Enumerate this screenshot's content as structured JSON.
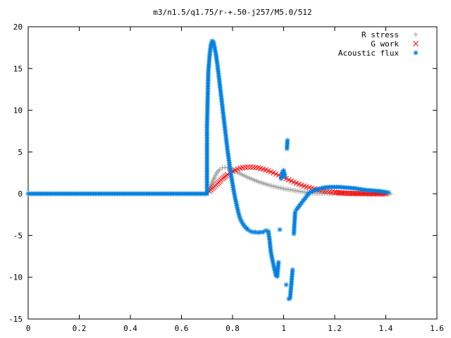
{
  "chart_data": {
    "type": "scatter",
    "title": "m3/n1.5/q1.75/r-+.50-j257/M5.0/512",
    "xlabel": "",
    "ylabel": "",
    "xlim": [
      0,
      1.6
    ],
    "ylim": [
      -15,
      20
    ],
    "xticks": [
      0,
      0.2,
      0.4,
      0.6,
      0.8,
      1,
      1.2,
      1.4,
      1.6
    ],
    "yticks": [
      -15,
      -10,
      -5,
      0,
      5,
      10,
      15,
      20
    ],
    "legend_position": "top-right",
    "grid": false,
    "series": [
      {
        "name": "R stress",
        "marker": "plus",
        "color": "#a0a0a0",
        "x": [
          0,
          0.1,
          0.2,
          0.3,
          0.4,
          0.5,
          0.6,
          0.65,
          0.7,
          0.705,
          0.71,
          0.72,
          0.73,
          0.74,
          0.75,
          0.76,
          0.77,
          0.78,
          0.79,
          0.8,
          0.82,
          0.84,
          0.86,
          0.88,
          0.9,
          0.92,
          0.94,
          0.96,
          0.98,
          1.0,
          1.02,
          1.04,
          1.06,
          1.08,
          1.1,
          1.12,
          1.14,
          1.16,
          1.18,
          1.2,
          1.22,
          1.24,
          1.26,
          1.28,
          1.3,
          1.32,
          1.34,
          1.36,
          1.38,
          1.4,
          1.42
        ],
        "y": [
          0,
          0,
          0,
          0,
          0,
          0,
          0,
          0,
          0,
          0.2,
          0.6,
          1.3,
          2.0,
          2.6,
          2.9,
          3.1,
          3.15,
          3.1,
          3.0,
          2.85,
          2.55,
          2.25,
          1.95,
          1.7,
          1.45,
          1.25,
          1.05,
          0.9,
          0.75,
          0.6,
          0.5,
          0.4,
          0.3,
          0.2,
          0.12,
          0.08,
          0.05,
          0.03,
          0.02,
          0.01,
          0.0,
          0.0,
          0.0,
          0.0,
          0.0,
          0.0,
          0.0,
          0.0,
          0.0,
          0.0,
          0.0
        ]
      },
      {
        "name": "G work",
        "marker": "cross",
        "color": "#ff0000",
        "x": [
          0.71,
          0.72,
          0.73,
          0.74,
          0.75,
          0.76,
          0.77,
          0.78,
          0.79,
          0.8,
          0.81,
          0.82,
          0.83,
          0.84,
          0.85,
          0.86,
          0.87,
          0.88,
          0.89,
          0.9,
          0.91,
          0.92,
          0.93,
          0.94,
          0.95,
          0.96,
          0.97,
          0.98,
          0.99,
          1.0,
          1.01,
          1.02,
          1.03,
          1.04,
          1.05,
          1.06,
          1.07,
          1.08,
          1.09,
          1.1,
          1.11,
          1.12,
          1.13,
          1.14,
          1.15,
          1.16,
          1.17,
          1.18,
          1.19,
          1.2,
          1.22,
          1.24,
          1.26,
          1.28,
          1.3,
          1.32,
          1.34,
          1.36,
          1.38,
          1.4
        ],
        "y": [
          0.3,
          0.6,
          0.9,
          1.2,
          1.5,
          1.8,
          2.05,
          2.3,
          2.5,
          2.7,
          2.85,
          2.97,
          3.05,
          3.12,
          3.17,
          3.2,
          3.2,
          3.18,
          3.15,
          3.1,
          3.03,
          2.95,
          2.86,
          2.75,
          2.63,
          2.5,
          2.37,
          2.23,
          2.09,
          1.95,
          1.81,
          1.67,
          1.53,
          1.4,
          1.27,
          1.15,
          1.04,
          0.93,
          0.83,
          0.74,
          0.65,
          0.57,
          0.5,
          0.44,
          0.38,
          0.33,
          0.28,
          0.24,
          0.2,
          0.17,
          0.12,
          0.08,
          0.05,
          0.03,
          0.02,
          0.01,
          0.0,
          0.0,
          0.0,
          0.0
        ]
      },
      {
        "name": "Acoustic flux",
        "marker": "star",
        "color": "#0080e0",
        "x": [
          0,
          0.1,
          0.2,
          0.3,
          0.4,
          0.5,
          0.6,
          0.7,
          0.7,
          0.705,
          0.71,
          0.715,
          0.72,
          0.725,
          0.73,
          0.735,
          0.74,
          0.745,
          0.75,
          0.755,
          0.76,
          0.765,
          0.77,
          0.775,
          0.78,
          0.785,
          0.79,
          0.795,
          0.8,
          0.805,
          0.81,
          0.815,
          0.82,
          0.825,
          0.83,
          0.84,
          0.85,
          0.86,
          0.87,
          0.88,
          0.89,
          0.9,
          0.91,
          0.92,
          0.93,
          0.94,
          0.945,
          0.95,
          0.96,
          0.97,
          0.975,
          0.98,
          0.985,
          0.99,
          0.995,
          1.0,
          1.005,
          1.01,
          1.013,
          1.015,
          1.02,
          1.025,
          1.03,
          1.035,
          1.04,
          1.045,
          1.05,
          1.06,
          1.07,
          1.08,
          1.09,
          1.1,
          1.12,
          1.14,
          1.16,
          1.18,
          1.2,
          1.22,
          1.24,
          1.26,
          1.28,
          1.3,
          1.32,
          1.34,
          1.36,
          1.38,
          1.4,
          1.41
        ],
        "y": [
          0,
          0,
          0,
          0,
          0,
          0,
          0,
          0,
          8.1,
          14.5,
          16.5,
          17.8,
          18.3,
          18.2,
          17.5,
          16.7,
          15.6,
          14.4,
          13.1,
          11.8,
          10.5,
          9.2,
          7.9,
          6.6,
          5.3,
          4.2,
          3.1,
          2.1,
          1.2,
          0.3,
          -0.5,
          -1.2,
          -1.9,
          -2.5,
          -3.0,
          -3.6,
          -4.0,
          -4.3,
          -4.5,
          -4.6,
          -4.6,
          -4.65,
          -4.6,
          -4.6,
          -4.4,
          -4.5,
          -5.5,
          -7.0,
          -8.5,
          -9.8,
          -9.9,
          -8.2,
          -4.3,
          1.8,
          2.6,
          2.8,
          2.1,
          -10.9,
          5.4,
          6.4,
          -12.6,
          -12.5,
          -10.9,
          -9.1,
          -4.8,
          -2.2,
          -1.9,
          -1.5,
          -1.1,
          -0.7,
          -0.3,
          0.1,
          0.4,
          0.6,
          0.75,
          0.8,
          0.8,
          0.8,
          0.75,
          0.7,
          0.65,
          0.55,
          0.45,
          0.4,
          0.35,
          0.3,
          0.2,
          0.15
        ]
      }
    ]
  }
}
